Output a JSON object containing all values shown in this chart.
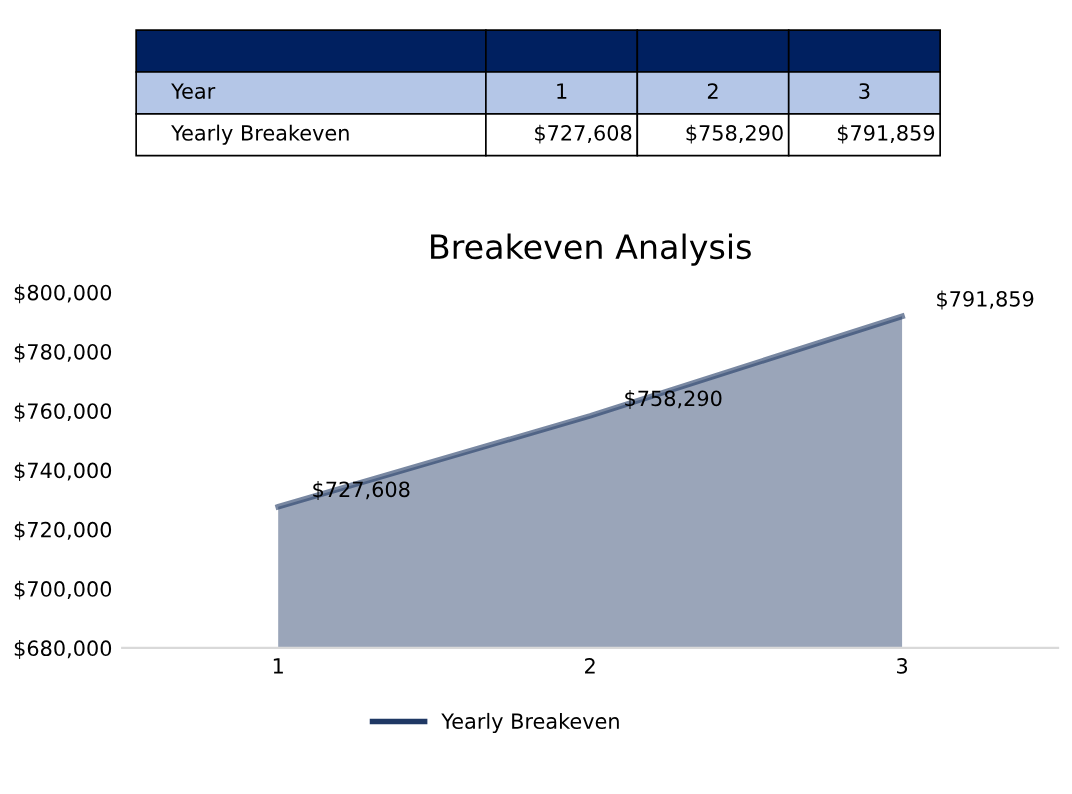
{
  "chart_data": {
    "type": "area",
    "title": "Breakeven Analysis",
    "categories": [
      "1",
      "2",
      "3"
    ],
    "series": [
      {
        "name": "Yearly Breakeven",
        "color": "#1f3864",
        "values": [
          727608,
          758290,
          791859
        ],
        "value_labels": [
          "$727,608",
          "$758,290",
          "$791,859"
        ]
      }
    ],
    "ylim": [
      680000,
      800000
    ],
    "yticks": [
      {
        "value": 680000,
        "label": "$680,000"
      },
      {
        "value": 700000,
        "label": "$700,000"
      },
      {
        "value": 720000,
        "label": "$720,000"
      },
      {
        "value": 740000,
        "label": "$740,000"
      },
      {
        "value": 760000,
        "label": "$760,000"
      },
      {
        "value": 780000,
        "label": "$780,000"
      },
      {
        "value": 800000,
        "label": "$800,000"
      }
    ],
    "annotations": [
      "Year"
    ],
    "legend": "bottom",
    "grid": false
  }
}
